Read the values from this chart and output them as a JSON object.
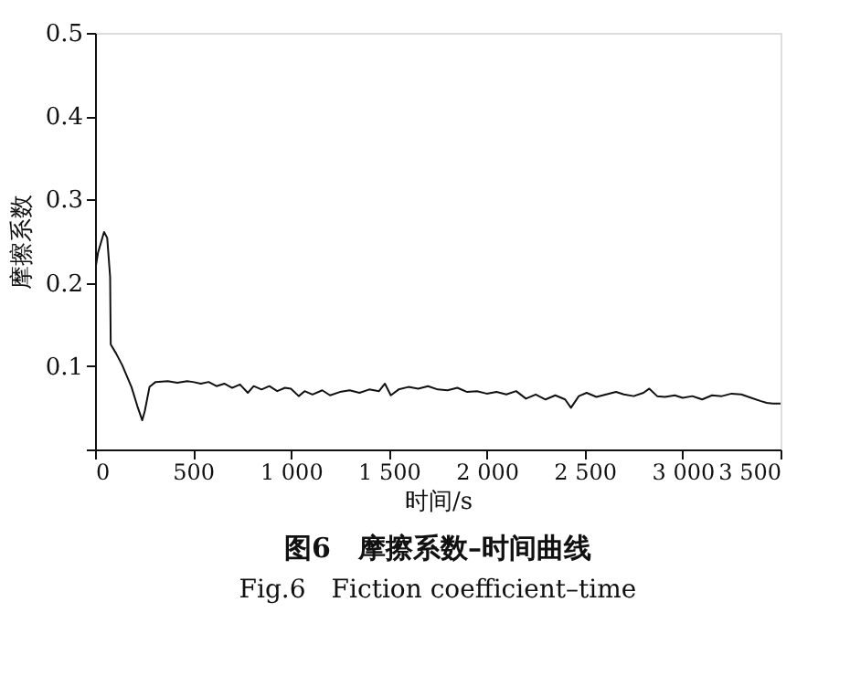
{
  "chart_data": {
    "type": "line",
    "xlabel": "时间/s",
    "ylabel": "摩擦系数",
    "title": "图6　摩擦系数–时间曲线",
    "subtitle": "Fig.6　Fiction coefficient–time",
    "xlim": [
      0,
      3500
    ],
    "ylim": [
      0,
      0.5
    ],
    "xticks": [
      0,
      500,
      {
        "value": 1000,
        "label": "1 000"
      },
      {
        "value": 1500,
        "label": "1 500"
      },
      {
        "value": 2000,
        "label": "2 000"
      },
      {
        "value": 2500,
        "label": "2 500"
      },
      {
        "value": 3000,
        "label": "3 000"
      },
      {
        "value": 3500,
        "label": "3 500"
      }
    ],
    "yticks": [
      {
        "value": 0,
        "label": null
      },
      0.1,
      0.2,
      0.3,
      0.4,
      0.5
    ],
    "grid": false,
    "series": [
      {
        "color": "#111111",
        "x": [
          0,
          15,
          46,
          62,
          77,
          80,
          108,
          139,
          186,
          216,
          241,
          254,
          278,
          309,
          371,
          420,
          470,
          500,
          540,
          580,
          620,
          660,
          700,
          740,
          780,
          810,
          850,
          890,
          930,
          970,
          1000,
          1040,
          1070,
          1110,
          1160,
          1200,
          1250,
          1300,
          1350,
          1400,
          1450,
          1480,
          1510,
          1550,
          1600,
          1650,
          1700,
          1750,
          1800,
          1850,
          1900,
          1950,
          2000,
          2050,
          2100,
          2150,
          2200,
          2250,
          2300,
          2350,
          2400,
          2430,
          2470,
          2510,
          2560,
          2610,
          2660,
          2700,
          2750,
          2800,
          2830,
          2870,
          2910,
          2960,
          3000,
          3050,
          3100,
          3150,
          3200,
          3250,
          3300,
          3350,
          3400,
          3430,
          3460,
          3500
        ],
        "values": [
          0.214,
          0.236,
          0.261,
          0.254,
          0.207,
          0.126,
          0.115,
          0.101,
          0.075,
          0.052,
          0.035,
          0.046,
          0.075,
          0.081,
          0.082,
          0.08,
          0.082,
          0.081,
          0.079,
          0.081,
          0.076,
          0.079,
          0.074,
          0.078,
          0.068,
          0.076,
          0.072,
          0.076,
          0.07,
          0.074,
          0.073,
          0.064,
          0.07,
          0.066,
          0.071,
          0.065,
          0.069,
          0.071,
          0.068,
          0.072,
          0.07,
          0.079,
          0.065,
          0.072,
          0.075,
          0.073,
          0.076,
          0.072,
          0.071,
          0.074,
          0.069,
          0.07,
          0.067,
          0.069,
          0.066,
          0.07,
          0.061,
          0.066,
          0.06,
          0.065,
          0.06,
          0.05,
          0.064,
          0.068,
          0.063,
          0.066,
          0.069,
          0.066,
          0.064,
          0.068,
          0.073,
          0.064,
          0.063,
          0.065,
          0.062,
          0.064,
          0.06,
          0.065,
          0.064,
          0.067,
          0.066,
          0.062,
          0.058,
          0.056,
          0.055,
          0.055
        ]
      }
    ]
  }
}
